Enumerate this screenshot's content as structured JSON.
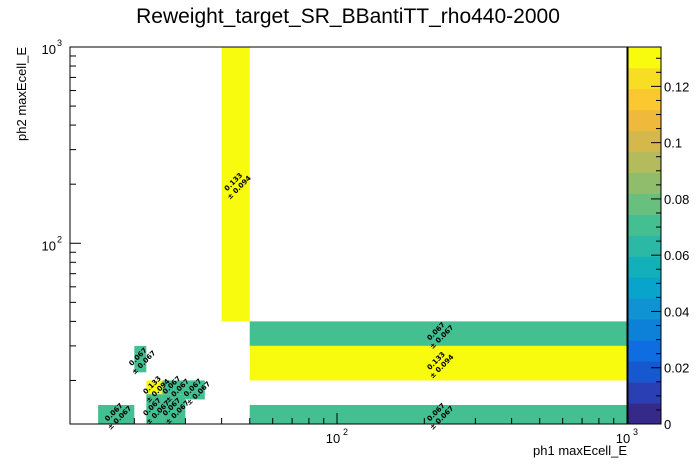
{
  "chart_data": {
    "type": "heatmap",
    "title": "Reweight_target_SR_BBantiTT_rho440-2000",
    "xlabel": "ph1 maxEcell_E",
    "ylabel": "ph2 maxEcell_E",
    "x_scale": "log",
    "y_scale": "log",
    "xlim": [
      12,
      1000
    ],
    "ylim": [
      12,
      1000
    ],
    "zlim": [
      0,
      0.134
    ],
    "x_ticks": [
      {
        "value": 100,
        "base": "10",
        "exp": "2"
      },
      {
        "value": 1000,
        "base": "10",
        "exp": "3"
      }
    ],
    "y_ticks": [
      {
        "value": 100,
        "base": "10",
        "exp": "2"
      },
      {
        "value": 1000,
        "base": "10",
        "exp": "3"
      }
    ],
    "z_ticks": [
      {
        "value": 0,
        "label": "0"
      },
      {
        "value": 0.02,
        "label": "0.02"
      },
      {
        "value": 0.04,
        "label": "0.04"
      },
      {
        "value": 0.06,
        "label": "0.06"
      },
      {
        "value": 0.08,
        "label": "0.08"
      },
      {
        "value": 0.1,
        "label": "0.1"
      },
      {
        "value": 0.12,
        "label": "0.12"
      }
    ],
    "cells": [
      {
        "x0": 40,
        "x1": 50,
        "y0": 40,
        "y1": 1000,
        "value": 0.133,
        "text": "0.133",
        "err": "± 0.094"
      },
      {
        "x0": 50,
        "x1": 1000,
        "y0": 30,
        "y1": 40,
        "value": 0.067,
        "text": "0.067",
        "err": "± 0.067"
      },
      {
        "x0": 50,
        "x1": 1000,
        "y0": 20,
        "y1": 30,
        "value": 0.133,
        "text": "0.133",
        "err": "± 0.094"
      },
      {
        "x0": 50,
        "x1": 1000,
        "y0": 12,
        "y1": 15,
        "value": 0.067,
        "text": "0.067",
        "err": "± 0.067"
      },
      {
        "x0": 20,
        "x1": 22,
        "y0": 22,
        "y1": 30,
        "value": 0.067,
        "text": "0.067",
        "err": "± 0.067"
      },
      {
        "x0": 15,
        "x1": 20,
        "y0": 12,
        "y1": 15,
        "value": 0.067,
        "text": "0.067",
        "err": "± 0.067"
      },
      {
        "x0": 22,
        "x1": 25,
        "y0": 17,
        "y1": 20,
        "value": 0.133,
        "text": "0.133",
        "err": "± 0.094"
      },
      {
        "x0": 25,
        "x1": 30,
        "y0": 17,
        "y1": 20,
        "value": 0.067,
        "text": "0.067",
        "err": "± 0.067"
      },
      {
        "x0": 30,
        "x1": 35,
        "y0": 16,
        "y1": 20,
        "value": 0.067,
        "text": "0.067",
        "err": "± 0.067"
      },
      {
        "x0": 22,
        "x1": 25,
        "y0": 12,
        "y1": 17,
        "value": 0.067,
        "text": "0.067",
        "err": "± 0.067"
      },
      {
        "x0": 25,
        "x1": 30,
        "y0": 12,
        "y1": 17,
        "value": 0.067,
        "text": "0.067",
        "err": "± 0.067"
      }
    ],
    "palette": [
      "#352a87",
      "#2a3fb4",
      "#1558cf",
      "#0e6de0",
      "#0d80d8",
      "#0f93d2",
      "#08a4cb",
      "#12b1b9",
      "#2bb9a5",
      "#44bf92",
      "#69bf7e",
      "#8fbd6b",
      "#b3bb5c",
      "#d4b84c",
      "#efba3c",
      "#fbc92f",
      "#f8dd25",
      "#f9fb0e"
    ],
    "colors": {
      "low": "#352a87",
      "mid": "#50bd8f",
      "high": "#f9fb0e"
    }
  }
}
